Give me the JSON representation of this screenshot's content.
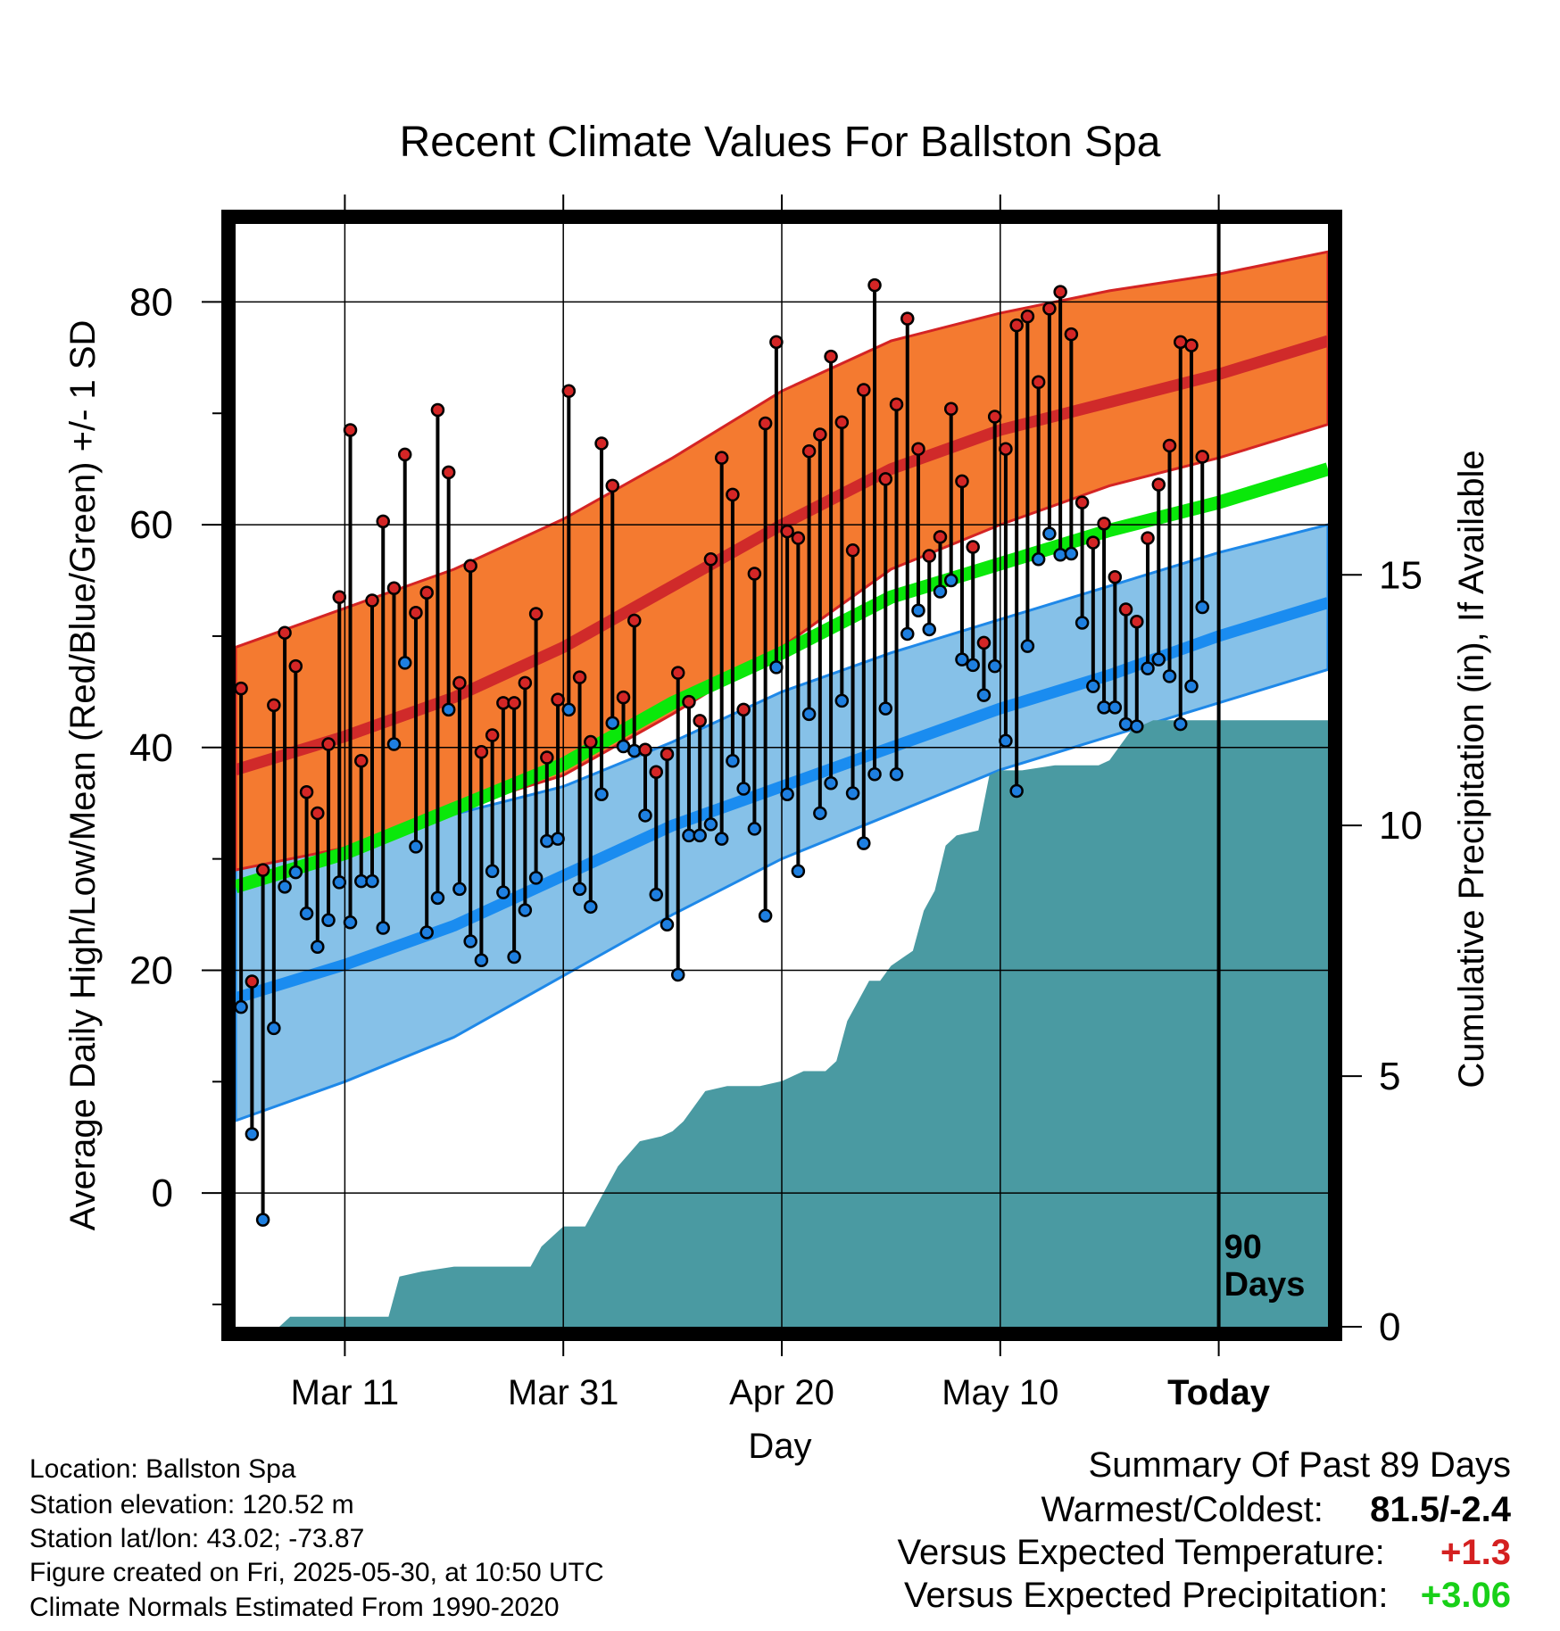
{
  "title": "Recent Climate Values For Ballston Spa",
  "chart_data": {
    "type": "line",
    "title": "Recent Climate Values For Ballston Spa",
    "xlabel": "Day",
    "ylabel": "Average Daily High/Low/Mean (Red/Blue/Green) +/- 1 SD",
    "y2label": "Cumulative Precipitation (in), If Available",
    "x_tick_labels": [
      "Mar 11",
      "Mar 31",
      "Apr 20",
      "May 10",
      "Today"
    ],
    "x_tick_days": [
      10,
      30,
      50,
      70,
      90
    ],
    "xlim": [
      0,
      100
    ],
    "ylim": [
      -12,
      87
    ],
    "y_ticks": [
      0,
      20,
      40,
      60,
      80
    ],
    "y2lim": [
      0,
      22
    ],
    "y2_ticks": [
      0,
      5,
      10,
      15
    ],
    "today_marker": {
      "day": 90,
      "label_line1": "90",
      "label_line2": "Days"
    },
    "colors": {
      "high_band": "#f47a30",
      "high_line": "#d02a2a",
      "high_edge": "#d42424",
      "low_band": "#86c1e8",
      "low_line": "#1a8cf0",
      "low_edge": "#1e88e8",
      "mean_line": "#0ae80a",
      "precip": "#4a9aa2",
      "high_dot": "#d42626",
      "low_dot": "#1e7fe0"
    },
    "normal_high": {
      "x": [
        0,
        10,
        20,
        30,
        40,
        50,
        60,
        70,
        80,
        90,
        100
      ],
      "y": [
        38,
        41,
        44.5,
        49,
        54.5,
        60,
        65,
        68.5,
        71,
        73.5,
        76.5
      ]
    },
    "normal_high_sd": {
      "x": [
        0,
        10,
        20,
        30,
        40,
        50,
        60,
        70,
        80,
        90,
        100
      ],
      "upper": [
        49,
        52.5,
        56,
        60.5,
        66,
        72,
        76.5,
        79,
        81,
        82.5,
        84.5
      ],
      "lower": [
        29,
        31,
        34.5,
        37.5,
        43,
        49,
        56,
        60,
        63.5,
        66,
        69
      ]
    },
    "normal_low": {
      "x": [
        0,
        10,
        20,
        30,
        40,
        50,
        60,
        70,
        80,
        90,
        100
      ],
      "y": [
        17.5,
        20.5,
        24,
        28.5,
        33,
        36.5,
        40,
        43.5,
        46.5,
        50,
        53
      ]
    },
    "normal_low_sd": {
      "x": [
        0,
        10,
        20,
        30,
        40,
        50,
        60,
        70,
        80,
        90,
        100
      ],
      "upper": [
        29,
        31.5,
        34,
        36.5,
        40.5,
        45,
        48.5,
        51.5,
        54.5,
        57.5,
        60
      ],
      "lower": [
        6.5,
        10,
        14,
        19.5,
        25,
        30,
        34,
        38,
        41,
        44,
        47
      ]
    },
    "normal_mean": {
      "x": [
        0,
        10,
        20,
        30,
        40,
        50,
        60,
        70,
        80,
        90,
        100
      ],
      "y": [
        27.5,
        30.5,
        34.5,
        38.5,
        44,
        48.5,
        53.5,
        56.5,
        59.5,
        62,
        65
      ]
    },
    "daily": {
      "day": [
        0,
        1,
        2,
        3,
        4,
        5,
        6,
        7,
        8,
        9,
        10,
        11,
        12,
        13,
        14,
        15,
        16,
        17,
        18,
        19,
        20,
        21,
        22,
        23,
        24,
        25,
        26,
        27,
        28,
        29,
        30,
        31,
        32,
        33,
        34,
        35,
        36,
        37,
        38,
        39,
        40,
        41,
        42,
        43,
        44,
        45,
        46,
        47,
        48,
        49,
        50,
        51,
        52,
        53,
        54,
        55,
        56,
        57,
        58,
        59,
        60,
        61,
        62,
        63,
        64,
        65,
        66,
        67,
        68,
        69,
        70,
        71,
        72,
        73,
        74,
        75,
        76,
        77,
        78,
        79,
        80,
        81,
        82,
        83,
        84,
        85,
        86,
        87,
        88
      ],
      "high": [
        45.3,
        19,
        29,
        43.8,
        50.3,
        47.3,
        36,
        34.1,
        40.3,
        53.5,
        68.5,
        38.8,
        53.2,
        60.3,
        54.3,
        66.3,
        52.1,
        53.9,
        70.3,
        64.7,
        45.8,
        56.3,
        39.6,
        41.1,
        44,
        44,
        45.8,
        52,
        39.1,
        44.3,
        72,
        46.3,
        40.5,
        67.3,
        63.5,
        44.5,
        51.4,
        39.8,
        37.8,
        39.4,
        46.7,
        44.1,
        42.4,
        56.9,
        66,
        62.7,
        43.4,
        55.6,
        69.1,
        76.4,
        59.4,
        58.8,
        66.6,
        68.1,
        75.1,
        69.2,
        57.7,
        72.1,
        81.5,
        64.1,
        70.8,
        78.5,
        66.8,
        57.2,
        58.9,
        70.4,
        63.9,
        58,
        49.4,
        69.7,
        66.8,
        77.9,
        78.7,
        72.8,
        79.4,
        80.9,
        77.1,
        62,
        58.4,
        60.1,
        55.3,
        52.4,
        51.3,
        58.8,
        63.6,
        67.1,
        76.4,
        76.1,
        66.1
      ],
      "low": [
        16.7,
        5.3,
        -2.4,
        14.8,
        27.5,
        28.8,
        25.1,
        22.1,
        24.5,
        27.9,
        24.3,
        28,
        28,
        23.8,
        40.3,
        47.6,
        31.1,
        23.4,
        26.5,
        43.4,
        27.3,
        22.6,
        20.9,
        28.9,
        27,
        21.2,
        25.4,
        28.3,
        31.6,
        31.8,
        43.4,
        27.3,
        25.7,
        35.8,
        42.2,
        40.1,
        39.7,
        33.9,
        26.8,
        24.1,
        19.6,
        32.1,
        32.1,
        33.1,
        31.8,
        38.8,
        36.3,
        32.7,
        24.9,
        47.2,
        35.8,
        28.9,
        43,
        34.1,
        36.8,
        44.2,
        35.9,
        31.4,
        37.6,
        43.5,
        37.6,
        50.2,
        52.3,
        50.6,
        54,
        55,
        47.9,
        47.4,
        44.7,
        47.3,
        40.6,
        36.1,
        49.1,
        56.9,
        59.2,
        57.3,
        57.4,
        51.2,
        45.5,
        43.6,
        43.6,
        42.1,
        41.9,
        47.1,
        47.9,
        46.4,
        42.1,
        45.5,
        52.6
      ]
    },
    "precip_cumulative": {
      "day": [
        0,
        4,
        5,
        14,
        15,
        17,
        20,
        27,
        28,
        30,
        32,
        33,
        35,
        37,
        39,
        40,
        41,
        42,
        43,
        45,
        46,
        48,
        50,
        51,
        52,
        53,
        54,
        55,
        56,
        57,
        58,
        59,
        60,
        62,
        63,
        64,
        65,
        66,
        68,
        69,
        70,
        71,
        72,
        75,
        79,
        80,
        81,
        82,
        84,
        86,
        90,
        100
      ],
      "in": [
        0,
        0,
        0.2,
        0.2,
        1,
        1.1,
        1.2,
        1.2,
        1.6,
        2,
        2,
        2.4,
        3.2,
        3.7,
        3.8,
        3.9,
        4.1,
        4.4,
        4.7,
        4.8,
        4.8,
        4.8,
        4.9,
        5,
        5.1,
        5.1,
        5.1,
        5.3,
        6.1,
        6.5,
        6.9,
        6.9,
        7.2,
        7.5,
        8.3,
        8.7,
        9.6,
        9.8,
        9.9,
        11,
        11.1,
        11.1,
        11.1,
        11.2,
        11.2,
        11.3,
        11.6,
        11.9,
        12.1,
        12.1,
        12.1,
        12.1
      ]
    }
  },
  "info": {
    "location": "Location: Ballston Spa",
    "elevation": "Station elevation: 120.52 m",
    "latlon": "Station lat/lon: 43.02; -73.87",
    "created": "Figure created on Fri, 2025-05-30, at 10:50 UTC",
    "normals": "Climate Normals Estimated From 1990-2020"
  },
  "summary": {
    "heading": "Summary Of Past 89 Days",
    "warm_cold_label": "Warmest/Coldest:",
    "warm_cold_value": "81.5/-2.4",
    "temp_label": "Versus Expected Temperature:",
    "temp_value": "+1.3",
    "temp_color": "#d42020",
    "precip_label": "Versus Expected Precipitation:",
    "precip_value": "+3.06",
    "precip_color": "#18d018"
  }
}
